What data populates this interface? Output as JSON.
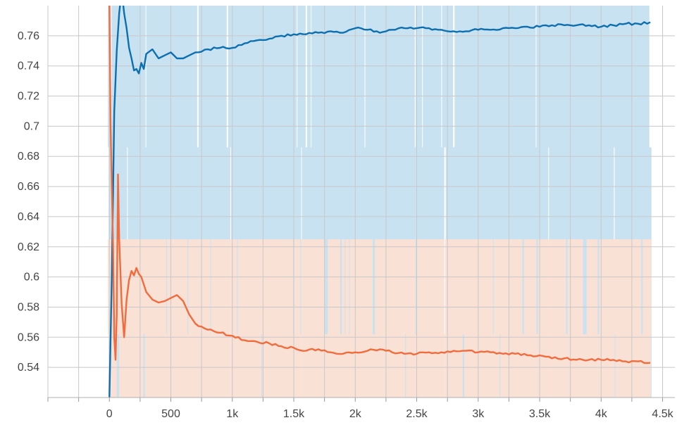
{
  "chart_data": {
    "type": "line",
    "title": "",
    "xlabel": "",
    "ylabel": "",
    "xlim": [
      -500,
      4600
    ],
    "ylim": [
      0.52,
      0.78
    ],
    "grid": true,
    "legend": "none",
    "x_ticks": [
      {
        "value": 0,
        "label": "0"
      },
      {
        "value": 500,
        "label": "500"
      },
      {
        "value": 1000,
        "label": "1k"
      },
      {
        "value": 1500,
        "label": "1.5k"
      },
      {
        "value": 2000,
        "label": "2k"
      },
      {
        "value": 2500,
        "label": "2.5k"
      },
      {
        "value": 3000,
        "label": "3k"
      },
      {
        "value": 3500,
        "label": "3.5k"
      },
      {
        "value": 4000,
        "label": "4k"
      },
      {
        "value": 4500,
        "label": "4.5k"
      }
    ],
    "y_ticks": [
      {
        "value": 0.54,
        "label": "0.54"
      },
      {
        "value": 0.56,
        "label": "0.56"
      },
      {
        "value": 0.58,
        "label": "0.58"
      },
      {
        "value": 0.6,
        "label": "0.6"
      },
      {
        "value": 0.62,
        "label": "0.62"
      },
      {
        "value": 0.64,
        "label": "0.64"
      },
      {
        "value": 0.66,
        "label": "0.66"
      },
      {
        "value": 0.68,
        "label": "0.68"
      },
      {
        "value": 0.7,
        "label": "0.7"
      },
      {
        "value": 0.72,
        "label": "0.72"
      },
      {
        "value": 0.74,
        "label": "0.74"
      },
      {
        "value": 0.76,
        "label": "0.76"
      }
    ],
    "series": [
      {
        "color": "#0b6fb0",
        "raw_color": "#c6e0f0",
        "raw_low": 0.52,
        "raw_mid": 0.686,
        "raw_high": 0.78,
        "x": [
          0,
          20,
          40,
          60,
          80,
          100,
          120,
          140,
          160,
          180,
          200,
          220,
          240,
          260,
          280,
          300,
          350,
          400,
          450,
          500,
          550,
          600,
          650,
          700,
          800,
          900,
          1000,
          1100,
          1200,
          1300,
          1400,
          1500,
          1600,
          1700,
          1800,
          1900,
          2000,
          2100,
          2200,
          2300,
          2400,
          2500,
          2600,
          2700,
          2800,
          2900,
          3000,
          3100,
          3200,
          3300,
          3400,
          3500,
          3600,
          3700,
          3800,
          3900,
          4000,
          4100,
          4200,
          4300,
          4400
        ],
        "values": [
          0.52,
          0.6,
          0.71,
          0.75,
          0.775,
          0.79,
          0.775,
          0.765,
          0.752,
          0.745,
          0.737,
          0.738,
          0.735,
          0.742,
          0.738,
          0.748,
          0.751,
          0.745,
          0.747,
          0.749,
          0.745,
          0.745,
          0.747,
          0.749,
          0.751,
          0.752,
          0.752,
          0.755,
          0.757,
          0.758,
          0.76,
          0.761,
          0.761,
          0.762,
          0.763,
          0.762,
          0.765,
          0.764,
          0.762,
          0.764,
          0.765,
          0.765,
          0.765,
          0.764,
          0.763,
          0.763,
          0.764,
          0.764,
          0.765,
          0.765,
          0.766,
          0.766,
          0.767,
          0.767,
          0.767,
          0.767,
          0.766,
          0.767,
          0.768,
          0.768,
          0.769
        ]
      },
      {
        "color": "#f26b3d",
        "raw_color": "#fde0d4",
        "raw_low": 0.52,
        "raw_mid": 0.562,
        "raw_high": 0.625,
        "x": [
          0,
          10,
          20,
          30,
          40,
          50,
          60,
          70,
          80,
          100,
          120,
          140,
          160,
          180,
          200,
          220,
          240,
          260,
          280,
          300,
          350,
          400,
          450,
          500,
          550,
          600,
          650,
          700,
          800,
          900,
          1000,
          1100,
          1200,
          1300,
          1400,
          1500,
          1600,
          1700,
          1800,
          1900,
          2000,
          2100,
          2200,
          2300,
          2400,
          2500,
          2600,
          2700,
          2800,
          2900,
          3000,
          3100,
          3200,
          3300,
          3400,
          3500,
          3600,
          3700,
          3800,
          3900,
          4000,
          4100,
          4200,
          4300,
          4400
        ],
        "values": [
          0.78,
          0.7,
          0.66,
          0.62,
          0.56,
          0.545,
          0.575,
          0.668,
          0.625,
          0.582,
          0.56,
          0.585,
          0.598,
          0.604,
          0.601,
          0.606,
          0.602,
          0.6,
          0.595,
          0.59,
          0.585,
          0.583,
          0.584,
          0.586,
          0.588,
          0.584,
          0.575,
          0.569,
          0.565,
          0.563,
          0.561,
          0.558,
          0.557,
          0.556,
          0.554,
          0.553,
          0.551,
          0.552,
          0.55,
          0.549,
          0.55,
          0.551,
          0.552,
          0.55,
          0.549,
          0.549,
          0.55,
          0.55,
          0.551,
          0.551,
          0.55,
          0.55,
          0.549,
          0.549,
          0.548,
          0.548,
          0.546,
          0.546,
          0.545,
          0.545,
          0.545,
          0.545,
          0.544,
          0.544,
          0.543
        ]
      }
    ]
  }
}
